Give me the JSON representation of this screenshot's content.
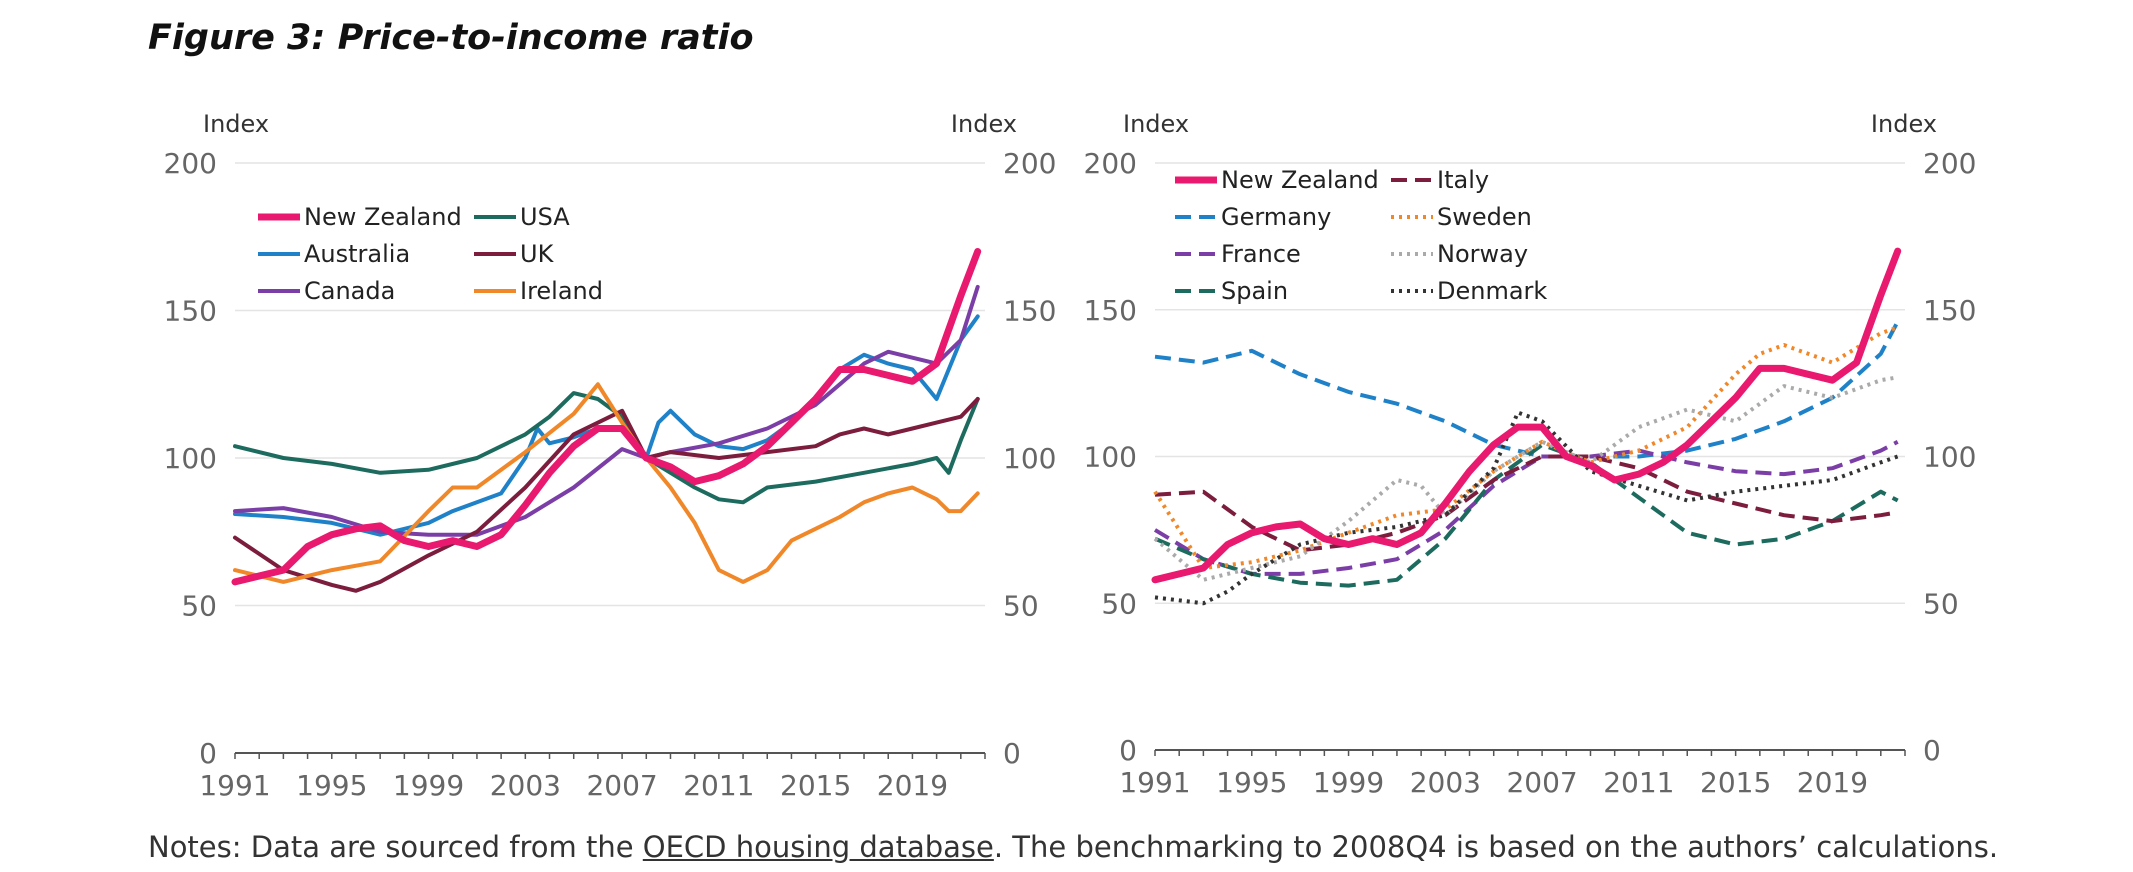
{
  "title": "Figure 3: Price-to-income ratio",
  "notes": {
    "prefix": "Notes:  Data are sourced from the ",
    "link": "OECD housing database",
    "suffix": ". The benchmarking to 2008Q4 is based on the authors’ calculations."
  },
  "chart_data": [
    {
      "type": "line",
      "ylabel_left": "Index",
      "ylabel_right": "Index",
      "ylim": [
        0,
        200
      ],
      "yticks": [
        0,
        50,
        100,
        150,
        200
      ],
      "xlim": [
        1991,
        2022
      ],
      "xticks": [
        1991,
        1995,
        1999,
        2003,
        2007,
        2011,
        2015,
        2019
      ],
      "grid": true,
      "legend_position": "top-left",
      "series": [
        {
          "name": "New Zealand",
          "color": "#e8196e",
          "style": "solid",
          "width": 7,
          "x": [
            1991,
            1993,
            1994,
            1995,
            1996,
            1997,
            1998,
            1999,
            2000,
            2001,
            2002,
            2003,
            2004,
            2005,
            2006,
            2007,
            2008,
            2009,
            2010,
            2011,
            2012,
            2013,
            2014,
            2015,
            2016,
            2017,
            2018,
            2019,
            2020,
            2021,
            2021.7
          ],
          "y": [
            58,
            62,
            70,
            74,
            76,
            77,
            72,
            70,
            72,
            70,
            74,
            84,
            95,
            104,
            110,
            110,
            100,
            97,
            92,
            94,
            98,
            104,
            112,
            120,
            130,
            130,
            128,
            126,
            132,
            155,
            170
          ]
        },
        {
          "name": "Australia",
          "color": "#1f82c8",
          "style": "solid",
          "width": 4,
          "x": [
            1991,
            1993,
            1995,
            1997,
            1999,
            2000,
            2001,
            2002,
            2003,
            2003.5,
            2004,
            2005,
            2006,
            2007,
            2008,
            2008.5,
            2009,
            2010,
            2011,
            2012,
            2013,
            2014,
            2015,
            2016,
            2017,
            2018,
            2019,
            2020,
            2021,
            2021.7
          ],
          "y": [
            81,
            80,
            78,
            74,
            78,
            82,
            85,
            88,
            100,
            110,
            105,
            107,
            110,
            110,
            100,
            112,
            116,
            108,
            104,
            103,
            106,
            112,
            120,
            130,
            135,
            132,
            130,
            120,
            140,
            148
          ]
        },
        {
          "name": "Canada",
          "color": "#7b3ea6",
          "style": "solid",
          "width": 4,
          "x": [
            1991,
            1993,
            1995,
            1997,
            1999,
            2001,
            2003,
            2005,
            2007,
            2008,
            2009,
            2011,
            2013,
            2015,
            2016,
            2017,
            2018,
            2019,
            2020,
            2021,
            2021.7
          ],
          "y": [
            82,
            83,
            80,
            75,
            74,
            74,
            80,
            90,
            103,
            100,
            102,
            105,
            110,
            118,
            125,
            132,
            136,
            134,
            132,
            140,
            158
          ]
        },
        {
          "name": "USA",
          "color": "#1d6b5e",
          "style": "solid",
          "width": 4,
          "x": [
            1991,
            1993,
            1995,
            1997,
            1999,
            2001,
            2003,
            2004,
            2005,
            2006,
            2007,
            2008,
            2009,
            2010,
            2011,
            2012,
            2013,
            2015,
            2017,
            2019,
            2020,
            2020.5,
            2021,
            2021.7
          ],
          "y": [
            104,
            100,
            98,
            95,
            96,
            100,
            108,
            114,
            122,
            120,
            114,
            100,
            95,
            90,
            86,
            85,
            90,
            92,
            95,
            98,
            100,
            95,
            106,
            120
          ]
        },
        {
          "name": "UK",
          "color": "#7c1d3d",
          "style": "solid",
          "width": 4,
          "x": [
            1991,
            1993,
            1995,
            1996,
            1997,
            1999,
            2001,
            2003,
            2005,
            2007,
            2008,
            2009,
            2011,
            2013,
            2015,
            2016,
            2017,
            2018,
            2019,
            2020,
            2021,
            2021.7
          ],
          "y": [
            73,
            62,
            57,
            55,
            58,
            67,
            75,
            90,
            108,
            116,
            100,
            102,
            100,
            102,
            104,
            108,
            110,
            108,
            110,
            112,
            114,
            120
          ]
        },
        {
          "name": "Ireland",
          "color": "#f0882a",
          "style": "solid",
          "width": 4,
          "x": [
            1991,
            1993,
            1995,
            1997,
            1999,
            2000,
            2001,
            2003,
            2005,
            2006,
            2007,
            2008,
            2009,
            2010,
            2011,
            2011.5,
            2012,
            2013,
            2014,
            2015,
            2016,
            2017,
            2018,
            2019,
            2020,
            2020.5,
            2021,
            2021.7
          ],
          "y": [
            62,
            58,
            62,
            65,
            82,
            90,
            90,
            102,
            115,
            125,
            112,
            100,
            90,
            78,
            62,
            60,
            58,
            62,
            72,
            76,
            80,
            85,
            88,
            90,
            86,
            82,
            82,
            88
          ]
        }
      ]
    },
    {
      "type": "line",
      "ylabel_left": "Index",
      "ylabel_right": "Index",
      "ylim": [
        0,
        200
      ],
      "yticks": [
        0,
        50,
        100,
        150,
        200
      ],
      "xlim": [
        1991,
        2022
      ],
      "xticks": [
        1991,
        1995,
        1999,
        2003,
        2007,
        2011,
        2015,
        2019
      ],
      "grid": true,
      "legend_position": "top-left",
      "series": [
        {
          "name": "New Zealand",
          "color": "#e8196e",
          "style": "solid",
          "width": 7,
          "x": [
            1991,
            1993,
            1994,
            1995,
            1996,
            1997,
            1998,
            1999,
            2000,
            2001,
            2002,
            2003,
            2004,
            2005,
            2006,
            2007,
            2008,
            2009,
            2010,
            2011,
            2012,
            2013,
            2014,
            2015,
            2016,
            2017,
            2018,
            2019,
            2020,
            2021,
            2021.7
          ],
          "y": [
            58,
            62,
            70,
            74,
            76,
            77,
            72,
            70,
            72,
            70,
            74,
            84,
            95,
            104,
            110,
            110,
            100,
            97,
            92,
            94,
            98,
            104,
            112,
            120,
            130,
            130,
            128,
            126,
            132,
            155,
            170
          ]
        },
        {
          "name": "Germany",
          "color": "#1f82c8",
          "style": "dashed",
          "width": 4,
          "x": [
            1991,
            1993,
            1995,
            1997,
            1999,
            2001,
            2003,
            2005,
            2007,
            2009,
            2011,
            2013,
            2015,
            2017,
            2019,
            2021,
            2021.7
          ],
          "y": [
            134,
            132,
            136,
            128,
            122,
            118,
            112,
            104,
            100,
            100,
            100,
            102,
            106,
            112,
            120,
            135,
            146
          ]
        },
        {
          "name": "France",
          "color": "#7b3ea6",
          "style": "dashed",
          "width": 4,
          "x": [
            1991,
            1993,
            1995,
            1997,
            1999,
            2001,
            2003,
            2005,
            2007,
            2009,
            2011,
            2013,
            2015,
            2017,
            2019,
            2021,
            2021.7
          ],
          "y": [
            75,
            65,
            60,
            60,
            62,
            65,
            75,
            90,
            100,
            100,
            102,
            98,
            95,
            94,
            96,
            102,
            105
          ]
        },
        {
          "name": "Spain",
          "color": "#1d6b5e",
          "style": "dashed",
          "width": 4,
          "x": [
            1991,
            1993,
            1995,
            1997,
            1999,
            2001,
            2003,
            2005,
            2007,
            2009,
            2011,
            2013,
            2015,
            2017,
            2019,
            2021,
            2021.7
          ],
          "y": [
            72,
            65,
            60,
            57,
            56,
            58,
            72,
            92,
            104,
            98,
            86,
            74,
            70,
            72,
            78,
            88,
            85
          ]
        },
        {
          "name": "Italy",
          "color": "#7c1d3d",
          "style": "dashed",
          "width": 4,
          "x": [
            1991,
            1993,
            1995,
            1997,
            1999,
            2001,
            2003,
            2005,
            2007,
            2009,
            2011,
            2013,
            2015,
            2017,
            2019,
            2021,
            2021.7
          ],
          "y": [
            87,
            88,
            76,
            68,
            70,
            74,
            80,
            92,
            100,
            100,
            96,
            88,
            84,
            80,
            78,
            80,
            81
          ]
        },
        {
          "name": "Sweden",
          "color": "#f0882a",
          "style": "dotted",
          "width": 4,
          "x": [
            1991,
            1993,
            1995,
            1997,
            1999,
            2001,
            2003,
            2005,
            2007,
            2009,
            2011,
            2013,
            2015,
            2016,
            2017,
            2019,
            2021,
            2021.7
          ],
          "y": [
            88,
            62,
            64,
            68,
            74,
            80,
            82,
            95,
            105,
            98,
            102,
            110,
            128,
            135,
            138,
            132,
            142,
            144
          ]
        },
        {
          "name": "Norway",
          "color": "#aaaaaa",
          "style": "dotted",
          "width": 4,
          "x": [
            1991,
            1993,
            1995,
            1997,
            1999,
            2001,
            2002,
            2003,
            2005,
            2007,
            2009,
            2011,
            2013,
            2015,
            2017,
            2019,
            2021,
            2021.7
          ],
          "y": [
            72,
            58,
            62,
            66,
            78,
            92,
            90,
            80,
            95,
            105,
            98,
            110,
            116,
            112,
            124,
            120,
            126,
            127
          ]
        },
        {
          "name": "Denmark",
          "color": "#333333",
          "style": "dotted",
          "width": 4,
          "x": [
            1991,
            1993,
            1994,
            1995,
            1997,
            1999,
            2001,
            2003,
            2005,
            2006,
            2007,
            2009,
            2011,
            2013,
            2015,
            2017,
            2019,
            2021,
            2021.7
          ],
          "y": [
            52,
            50,
            54,
            60,
            70,
            74,
            76,
            80,
            96,
            115,
            112,
            95,
            90,
            85,
            88,
            90,
            92,
            98,
            100
          ]
        }
      ]
    }
  ]
}
